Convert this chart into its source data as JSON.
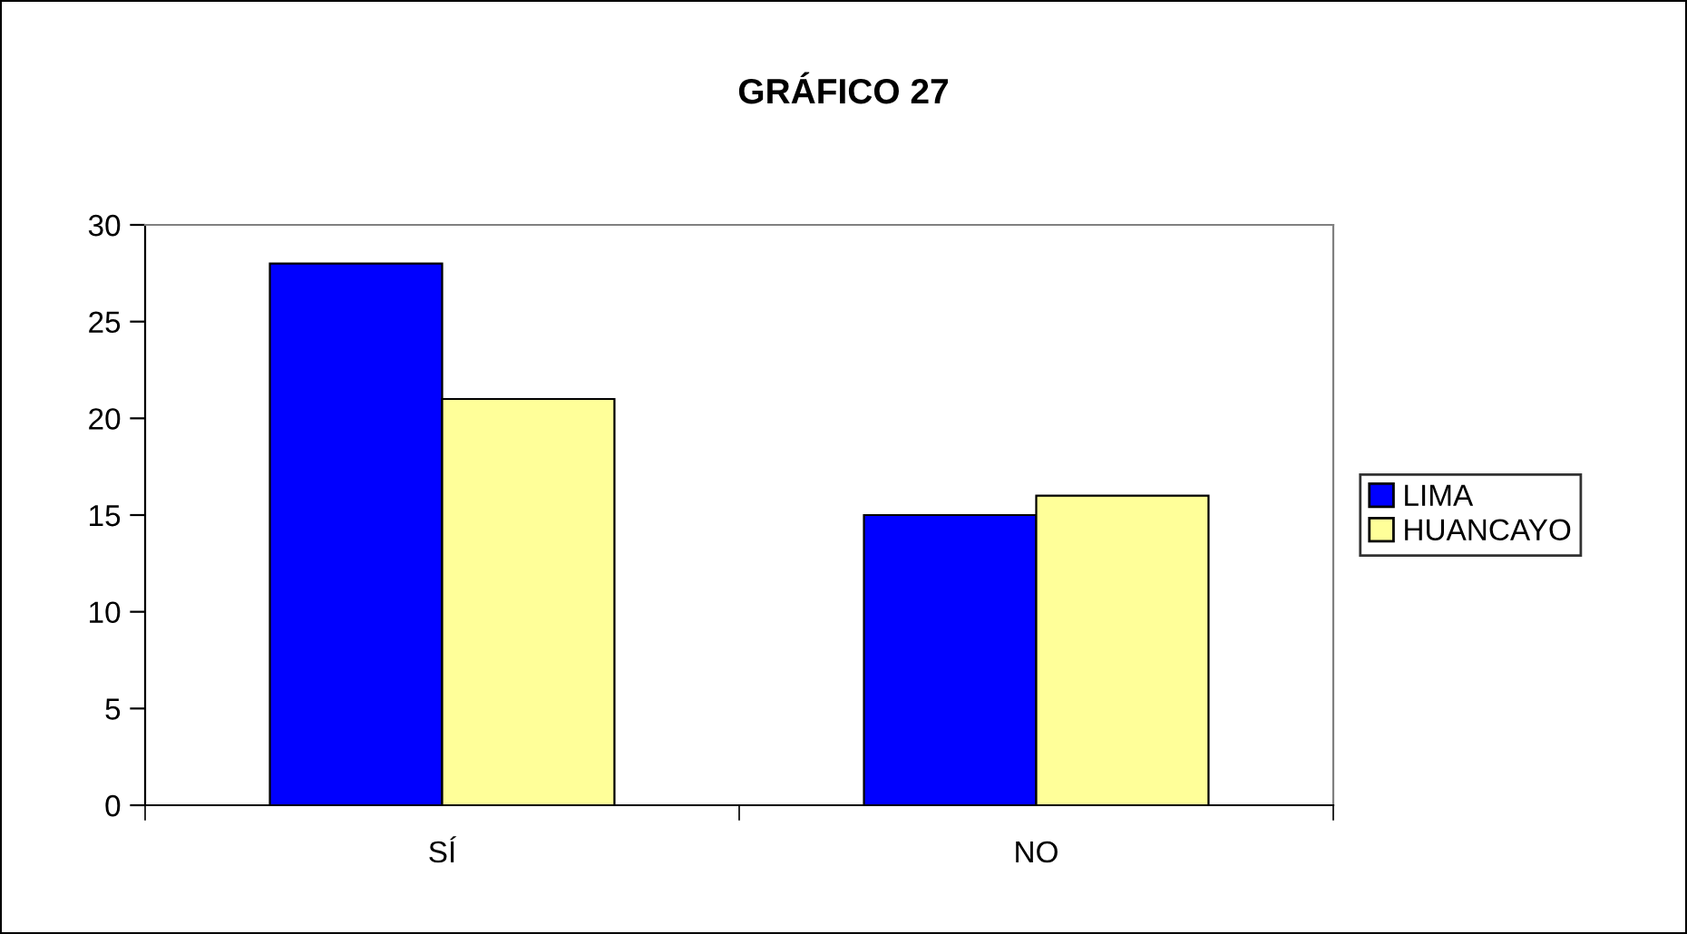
{
  "chart_data": {
    "type": "bar",
    "title": "GRÁFICO 27",
    "categories": [
      "SÍ",
      "NO"
    ],
    "series": [
      {
        "name": "LIMA",
        "color": "#0000ff",
        "values": [
          28,
          15
        ]
      },
      {
        "name": "HUANCAYO",
        "color": "#ffff99",
        "values": [
          21,
          16
        ]
      }
    ],
    "ylim": [
      0,
      30
    ],
    "yticks": [
      0,
      5,
      10,
      15,
      20,
      25,
      30
    ],
    "grid": false,
    "legend": "right"
  }
}
